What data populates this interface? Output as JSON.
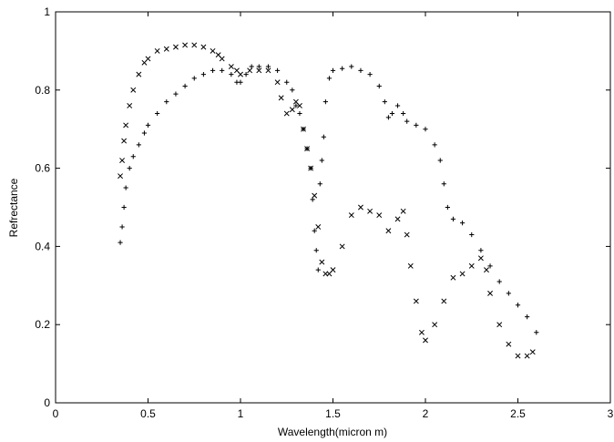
{
  "chart_data": {
    "type": "scatter",
    "title": "",
    "xlabel": "Wavelength(micron m)",
    "ylabel": "Refrectance",
    "xlim": [
      0,
      3
    ],
    "ylim": [
      0,
      1
    ],
    "xticks": [
      "0",
      "0.5",
      "1",
      "1.5",
      "2",
      "2.5",
      "3"
    ],
    "yticks": [
      "0",
      "0.2",
      "0.4",
      "0.6",
      "0.8",
      "1"
    ],
    "grid": false,
    "legend": "none",
    "series": [
      {
        "marker": "plus",
        "x": [
          0.35,
          0.36,
          0.37,
          0.38,
          0.4,
          0.42,
          0.45,
          0.48,
          0.5,
          0.55,
          0.6,
          0.65,
          0.7,
          0.75,
          0.8,
          0.85,
          0.9,
          0.95,
          0.98,
          1.0,
          1.03,
          1.06,
          1.1,
          1.15,
          1.2,
          1.25,
          1.28,
          1.3,
          1.32,
          1.34,
          1.36,
          1.38,
          1.39,
          1.4,
          1.41,
          1.42,
          1.43,
          1.44,
          1.45,
          1.46,
          1.48,
          1.5,
          1.55,
          1.6,
          1.65,
          1.7,
          1.75,
          1.78,
          1.8,
          1.82,
          1.85,
          1.88,
          1.9,
          1.95,
          2.0,
          2.05,
          2.08,
          2.1,
          2.12,
          2.15,
          2.2,
          2.25,
          2.3,
          2.35,
          2.4,
          2.45,
          2.5,
          2.55,
          2.6
        ],
        "y": [
          0.41,
          0.45,
          0.5,
          0.55,
          0.6,
          0.63,
          0.66,
          0.69,
          0.71,
          0.74,
          0.77,
          0.79,
          0.81,
          0.83,
          0.84,
          0.85,
          0.85,
          0.84,
          0.82,
          0.82,
          0.84,
          0.86,
          0.86,
          0.86,
          0.85,
          0.82,
          0.8,
          0.76,
          0.74,
          0.7,
          0.65,
          0.6,
          0.52,
          0.44,
          0.39,
          0.34,
          0.56,
          0.62,
          0.68,
          0.77,
          0.83,
          0.85,
          0.855,
          0.86,
          0.85,
          0.84,
          0.81,
          0.77,
          0.73,
          0.74,
          0.76,
          0.74,
          0.72,
          0.71,
          0.7,
          0.66,
          0.62,
          0.56,
          0.5,
          0.47,
          0.46,
          0.43,
          0.39,
          0.35,
          0.31,
          0.28,
          0.25,
          0.22,
          0.18
        ],
        "color": "#000000"
      },
      {
        "marker": "cross",
        "x": [
          0.35,
          0.36,
          0.37,
          0.38,
          0.4,
          0.42,
          0.45,
          0.48,
          0.5,
          0.55,
          0.6,
          0.65,
          0.7,
          0.75,
          0.8,
          0.85,
          0.88,
          0.9,
          0.95,
          0.98,
          1.0,
          1.05,
          1.1,
          1.15,
          1.2,
          1.22,
          1.25,
          1.28,
          1.3,
          1.32,
          1.34,
          1.36,
          1.38,
          1.4,
          1.42,
          1.44,
          1.46,
          1.48,
          1.5,
          1.55,
          1.6,
          1.65,
          1.7,
          1.75,
          1.8,
          1.85,
          1.88,
          1.9,
          1.92,
          1.95,
          1.98,
          2.0,
          2.05,
          2.1,
          2.15,
          2.2,
          2.25,
          2.3,
          2.33,
          2.35,
          2.4,
          2.45,
          2.5,
          2.55,
          2.58
        ],
        "y": [
          0.58,
          0.62,
          0.67,
          0.71,
          0.76,
          0.8,
          0.84,
          0.87,
          0.88,
          0.9,
          0.905,
          0.91,
          0.915,
          0.915,
          0.91,
          0.9,
          0.89,
          0.88,
          0.86,
          0.85,
          0.84,
          0.85,
          0.85,
          0.85,
          0.82,
          0.78,
          0.74,
          0.75,
          0.77,
          0.76,
          0.7,
          0.65,
          0.6,
          0.53,
          0.45,
          0.36,
          0.33,
          0.33,
          0.34,
          0.4,
          0.48,
          0.5,
          0.49,
          0.48,
          0.44,
          0.47,
          0.49,
          0.43,
          0.35,
          0.26,
          0.18,
          0.16,
          0.2,
          0.26,
          0.32,
          0.33,
          0.35,
          0.37,
          0.34,
          0.28,
          0.2,
          0.15,
          0.12,
          0.12,
          0.13
        ],
        "color": "#000000"
      }
    ]
  }
}
